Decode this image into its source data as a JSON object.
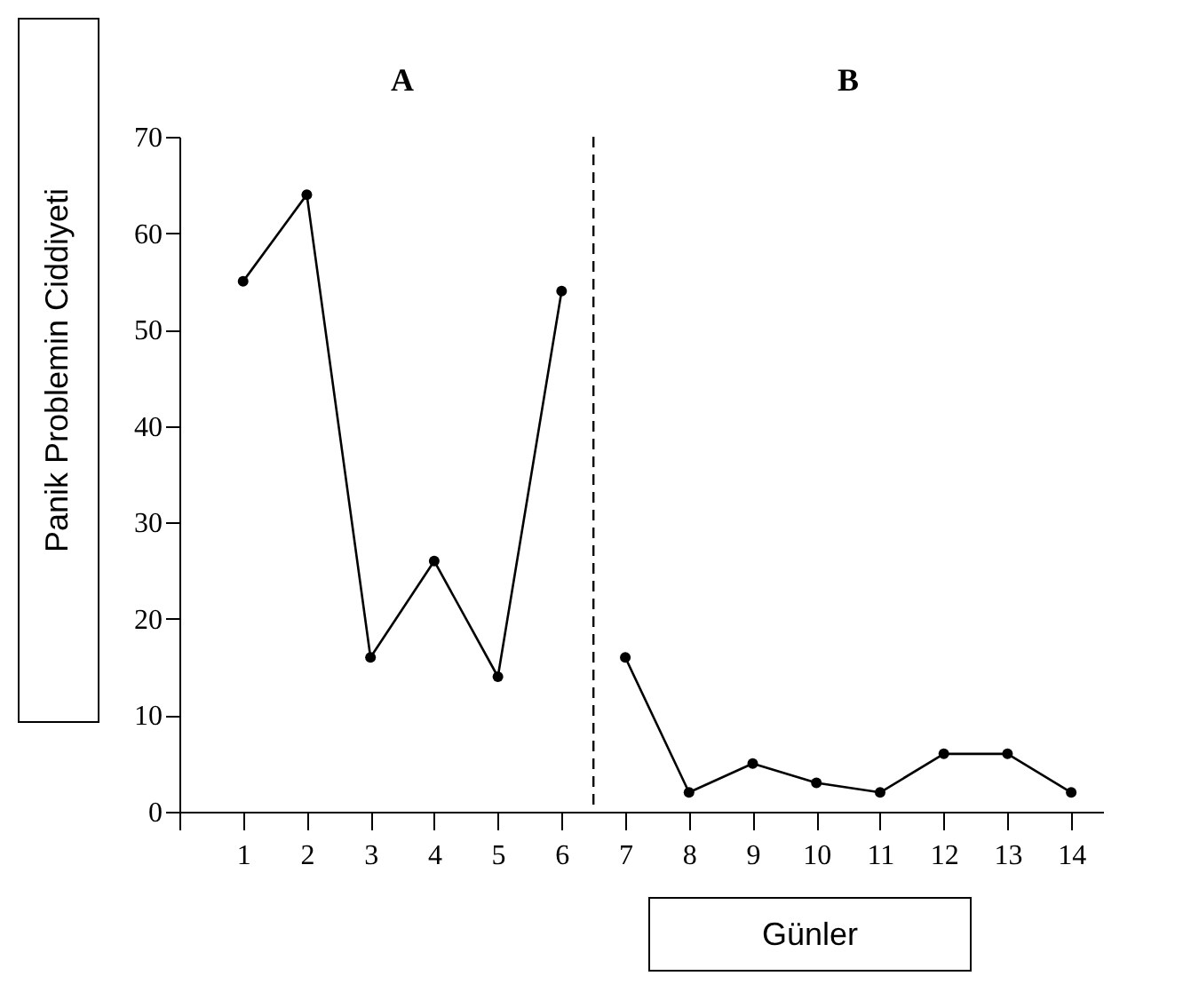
{
  "chart_data": {
    "type": "line",
    "xlabel": "Günler",
    "ylabel": "Panik Problemin Ciddiyeti",
    "annotations": [
      "A",
      "B"
    ],
    "series": [
      {
        "color": "#000000",
        "x": [
          1,
          2,
          3,
          4,
          5,
          6
        ],
        "values": [
          55,
          64,
          16,
          26,
          14,
          54
        ]
      },
      {
        "color": "#000000",
        "x": [
          7,
          8,
          9,
          10,
          11,
          12,
          13,
          14
        ],
        "values": [
          16,
          2,
          5,
          3,
          2,
          6,
          6,
          2
        ]
      }
    ],
    "xlim": [
      0,
      14.5
    ],
    "xticks": [
      {
        "value": 0,
        "label": null
      },
      1,
      2,
      3,
      4,
      5,
      6,
      7,
      8,
      9,
      10,
      11,
      12,
      13,
      14
    ],
    "ylim": [
      0,
      70
    ],
    "yticks": [
      0,
      10,
      20,
      30,
      40,
      50,
      60,
      70
    ],
    "ref_lines": [
      {
        "axis": "x",
        "value": 6.5,
        "color": "#000000",
        "line_style": "dashed"
      }
    ],
    "grid": false,
    "marker": "circle",
    "line_style": "solid"
  }
}
